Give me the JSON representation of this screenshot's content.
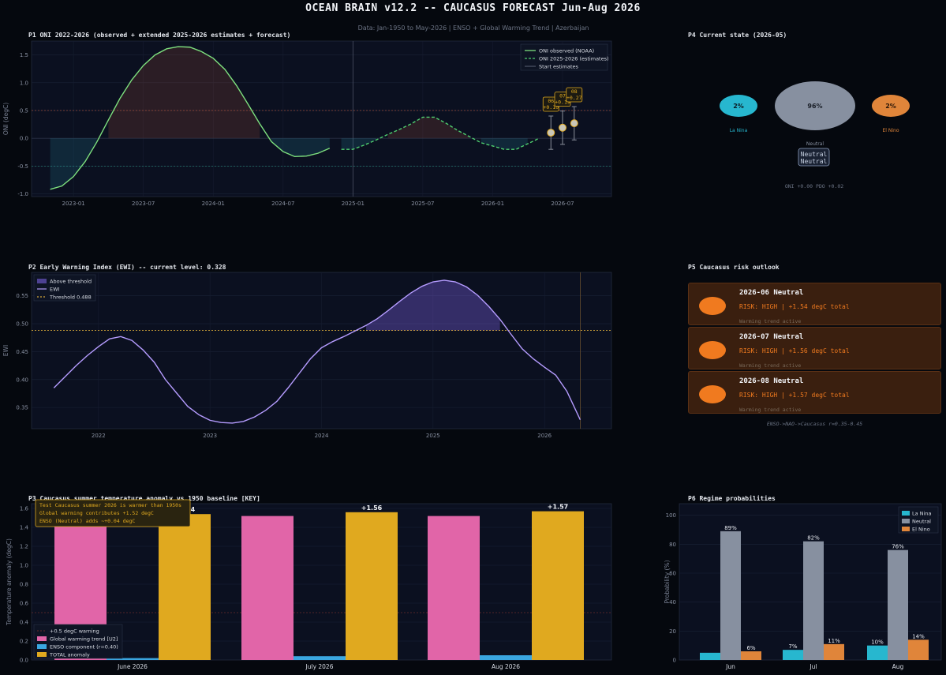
{
  "header": {
    "title": "OCEAN BRAIN v12.2  --  CAUCASUS FORECAST  Jun-Aug 2026",
    "subtitle": "Data: Jan-1950 to May-2026  |  ENSO + Global Warming Trend  |  Azerbaijan"
  },
  "panels": {
    "p1_title": "P1  ONI 2022-2026  (observed + extended 2025-2026 estimates + forecast)",
    "p2_title": "P2  Early Warning Index (EWI)  --  current level: 0.328",
    "p3_title": "P3  Caucasus summer temperature anomaly vs.1950 baseline  [KEY]",
    "p4_title": "P4  Current state  (2026-05)",
    "p5_title": "P5  Caucasus risk outlook",
    "p6_title": "P6  Regime probabilities"
  },
  "colors": {
    "oni_obs": "#7ee07e",
    "oni_est": "#4fcf6f",
    "ewi": "#b59cff",
    "threshold": "#d4a63a",
    "warming": "#e165a8",
    "enso": "#3aa6e0",
    "total": "#e0a91f",
    "la_nina": "#27b7cf",
    "neutral": "#8790a0",
    "el_nino": "#e0853a",
    "risk": "#f07a1f"
  },
  "chart_data": [
    {
      "id": "p1",
      "type": "line",
      "ylabel": "ONI (degC)",
      "ylim": [
        -1.05,
        1.75
      ],
      "yticks": [
        -1.0,
        -0.5,
        0.0,
        0.5,
        1.0,
        1.5
      ],
      "xticks": [
        "2023-01",
        "2023-07",
        "2024-01",
        "2024-07",
        "2025-01",
        "2025-07",
        "2026-01",
        "2026-07"
      ],
      "legend": [
        "ONI observed (NOAA)",
        "ONI 2025-2026 (estimates)",
        "Start estimates"
      ],
      "legend_position": "top-right",
      "hlines": [
        0.5,
        -0.5
      ],
      "observed": {
        "x": [
          "2022-11",
          "2022-12",
          "2023-01",
          "2023-02",
          "2023-03",
          "2023-04",
          "2023-05",
          "2023-06",
          "2023-07",
          "2023-08",
          "2023-09",
          "2023-10",
          "2023-11",
          "2023-12",
          "2024-01",
          "2024-02",
          "2024-03",
          "2024-04",
          "2024-05",
          "2024-06",
          "2024-07",
          "2024-08",
          "2024-09",
          "2024-10",
          "2024-11",
          "2024-12"
        ],
        "y": [
          -0.92,
          -0.86,
          -0.69,
          -0.42,
          -0.07,
          0.33,
          0.72,
          1.05,
          1.31,
          1.5,
          1.61,
          1.65,
          1.64,
          1.56,
          1.44,
          1.24,
          0.95,
          0.61,
          0.26,
          -0.06,
          -0.24,
          -0.33,
          -0.32,
          -0.27,
          -0.18,
          null
        ]
      },
      "estimates": {
        "x": [
          "2024-12",
          "2025-01",
          "2025-02",
          "2025-03",
          "2025-04",
          "2025-05",
          "2025-06",
          "2025-07",
          "2025-08",
          "2025-09",
          "2025-10",
          "2025-11",
          "2025-12",
          "2026-01",
          "2026-02",
          "2026-03",
          "2026-04",
          "2026-05"
        ],
        "y": [
          -0.2,
          -0.2,
          -0.12,
          -0.03,
          0.07,
          0.16,
          0.26,
          0.38,
          0.38,
          0.27,
          0.14,
          0.03,
          -0.08,
          -0.14,
          -0.2,
          -0.2,
          -0.1,
          0.0
        ]
      },
      "start_estimates": "2025-01",
      "forecast": [
        {
          "month": "2026-06",
          "label": "06",
          "value": "+0.10",
          "y": 0.1,
          "lo": -0.2,
          "hi": 0.4
        },
        {
          "month": "2026-07",
          "label": "07",
          "value": "+0.19",
          "y": 0.19,
          "lo": -0.11,
          "hi": 0.49
        },
        {
          "month": "2026-08",
          "label": "08",
          "value": "+0.27",
          "y": 0.27,
          "lo": -0.03,
          "hi": 0.57
        }
      ]
    },
    {
      "id": "p2",
      "type": "area",
      "ylabel": "EWI",
      "ylim": [
        0.312,
        0.592
      ],
      "yticks": [
        0.35,
        0.4,
        0.45,
        0.5,
        0.55
      ],
      "xticks": [
        "2022",
        "2023",
        "2024",
        "2025",
        "2026"
      ],
      "legend": [
        "Above threshold",
        "EWI",
        "Threshold 0.488"
      ],
      "legend_position": "top-left",
      "threshold": 0.488,
      "x": [
        2021.6,
        2021.7,
        2021.8,
        2021.9,
        2022.0,
        2022.1,
        2022.2,
        2022.3,
        2022.4,
        2022.5,
        2022.6,
        2022.7,
        2022.8,
        2022.9,
        2023.0,
        2023.1,
        2023.2,
        2023.3,
        2023.4,
        2023.5,
        2023.6,
        2023.7,
        2023.8,
        2023.9,
        2024.0,
        2024.1,
        2024.2,
        2024.3,
        2024.4,
        2024.5,
        2024.6,
        2024.7,
        2024.8,
        2024.9,
        2025.0,
        2025.1,
        2025.2,
        2025.3,
        2025.4,
        2025.5,
        2025.6,
        2025.7,
        2025.8,
        2025.9,
        2026.0,
        2026.1,
        2026.2,
        2026.32
      ],
      "y": [
        0.385,
        0.405,
        0.425,
        0.443,
        0.459,
        0.473,
        0.477,
        0.47,
        0.453,
        0.431,
        0.4,
        0.376,
        0.352,
        0.337,
        0.327,
        0.323,
        0.322,
        0.325,
        0.333,
        0.345,
        0.361,
        0.385,
        0.411,
        0.437,
        0.457,
        0.468,
        0.477,
        0.487,
        0.497,
        0.509,
        0.524,
        0.54,
        0.555,
        0.567,
        0.575,
        0.578,
        0.575,
        0.566,
        0.551,
        0.531,
        0.508,
        0.481,
        0.455,
        0.437,
        0.422,
        0.408,
        0.379,
        0.328
      ],
      "current_marker": 2026.32
    },
    {
      "id": "p3",
      "type": "bar",
      "ylabel": "Temperature anomaly (degC)",
      "ylim": [
        0,
        1.65
      ],
      "yticks": [
        0.0,
        0.2,
        0.4,
        0.6,
        0.8,
        1.0,
        1.2,
        1.4,
        1.6
      ],
      "categories": [
        "June 2026",
        "July 2026",
        "Aug 2026"
      ],
      "series": [
        {
          "name": "Global warming trend [U2]",
          "values": [
            1.52,
            1.52,
            1.52
          ]
        },
        {
          "name": "ENSO component (r=0.40)",
          "values": [
            0.02,
            0.04,
            0.05
          ]
        },
        {
          "name": "TOTAL anomaly",
          "values": [
            1.54,
            1.56,
            1.57
          ]
        }
      ],
      "total_labels": [
        "+1.54",
        "+1.56",
        "+1.57"
      ],
      "warning_line": {
        "name": "+0.5 degC warning",
        "y": 0.5
      },
      "legend_position": "lower-left",
      "annotation": [
        "Test Caucasus summer 2026 is warmer than 1950s",
        "Global warming contributes +1.52 degC",
        "ENSO (Neutral) adds ~+0.04 degC"
      ]
    },
    {
      "id": "p6",
      "type": "bar",
      "ylabel": "Probability (%)",
      "ylim": [
        0,
        108
      ],
      "yticks": [
        0,
        20,
        40,
        60,
        80,
        100
      ],
      "categories": [
        "Jun",
        "Jul",
        "Aug"
      ],
      "series": [
        {
          "name": "La Nina",
          "values": [
            5,
            7,
            10
          ]
        },
        {
          "name": "Neutral",
          "values": [
            89,
            82,
            76
          ]
        },
        {
          "name": "El Nino",
          "values": [
            6,
            11,
            14
          ]
        }
      ],
      "labels": [
        [
          "",
          "89%",
          "6%"
        ],
        [
          "7%",
          "82%",
          "11%"
        ],
        [
          "10%",
          "76%",
          "14%"
        ]
      ],
      "legend_position": "top-right"
    }
  ],
  "current_state": {
    "la_nina_pct": "2%",
    "neutral_pct": "96%",
    "el_nino_pct": "2%",
    "la_nina_label": "La Nina",
    "neutral_label": "Neutral",
    "el_nino_label": "El Nino",
    "box_line1": "Neutral",
    "box_line2": "Neutral",
    "footer": "ONI +0.00  PDO +0.02"
  },
  "risk": {
    "items": [
      {
        "title": "2026-06  Neutral",
        "risk": "RISK: HIGH  | +1.54 degC total",
        "note": "Warming trend active"
      },
      {
        "title": "2026-07  Neutral",
        "risk": "RISK: HIGH  | +1.56 degC total",
        "note": "Warming trend active"
      },
      {
        "title": "2026-08  Neutral",
        "risk": "RISK: HIGH  | +1.57 degC total",
        "note": "Warming trend active"
      }
    ],
    "footer": "ENSO->NAO->Caucasus r=0.35-0.45"
  }
}
